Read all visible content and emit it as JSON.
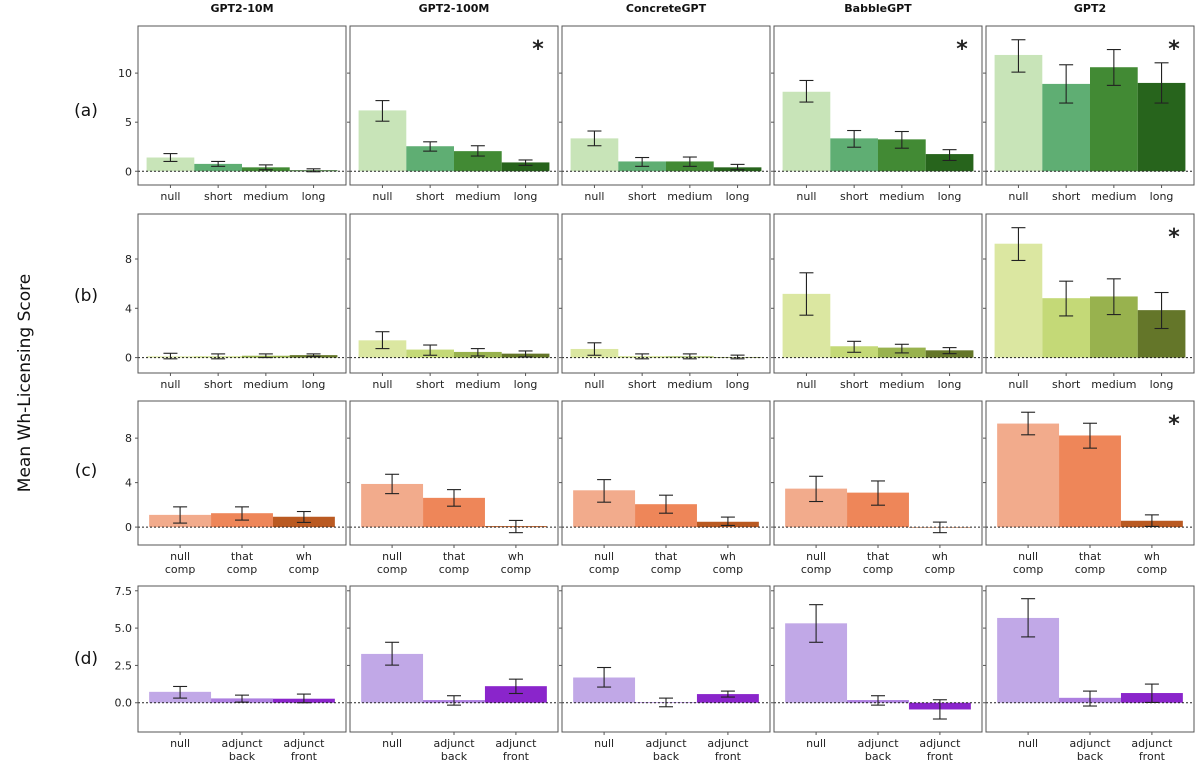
{
  "figure": {
    "y_title": "Mean Wh-Licensing Score",
    "models": [
      "GPT2-10M",
      "GPT2-100M",
      "ConcreteGPT",
      "BabbleGPT",
      "GPT2"
    ],
    "row_labels": [
      "(a)",
      "(b)",
      "(c)",
      "(d)"
    ],
    "significance_marker": "*"
  },
  "chart_data": [
    {
      "row": "(a)",
      "type": "bar",
      "categories": [
        [
          "null"
        ],
        [
          "short"
        ],
        [
          "medium"
        ],
        [
          "long"
        ]
      ],
      "colors": [
        "#c8e4b8",
        "#5fae73",
        "#428a34",
        "#27641c"
      ],
      "ylim": [
        -1.4,
        14.8
      ],
      "yticks": [
        0,
        5,
        10
      ],
      "ytick_labels": [
        "0",
        "5",
        "10"
      ],
      "reference_line": 0,
      "panels": [
        {
          "model": "GPT2-10M",
          "values": [
            1.4,
            0.75,
            0.4,
            0.1
          ],
          "err_low": [
            1.0,
            0.5,
            0.15,
            -0.05
          ],
          "err_high": [
            1.8,
            1.0,
            0.65,
            0.25
          ],
          "significant": false
        },
        {
          "model": "GPT2-100M",
          "values": [
            6.2,
            2.55,
            2.05,
            0.9
          ],
          "err_low": [
            5.1,
            2.05,
            1.55,
            0.6
          ],
          "err_high": [
            7.2,
            3.0,
            2.6,
            1.15
          ],
          "significant": true
        },
        {
          "model": "ConcreteGPT",
          "values": [
            3.35,
            1.0,
            1.0,
            0.4
          ],
          "err_low": [
            2.6,
            0.5,
            0.5,
            0.15
          ],
          "err_high": [
            4.1,
            1.4,
            1.45,
            0.7
          ],
          "significant": false
        },
        {
          "model": "BabbleGPT",
          "values": [
            8.1,
            3.35,
            3.25,
            1.75
          ],
          "err_low": [
            7.05,
            2.45,
            2.35,
            1.1
          ],
          "err_high": [
            9.25,
            4.15,
            4.05,
            2.2
          ],
          "significant": true
        },
        {
          "model": "GPT2",
          "values": [
            11.85,
            8.9,
            10.6,
            9.0
          ],
          "err_low": [
            10.1,
            6.95,
            8.75,
            6.95
          ],
          "err_high": [
            13.4,
            10.85,
            12.4,
            11.05
          ],
          "significant": true
        }
      ]
    },
    {
      "row": "(b)",
      "type": "bar",
      "categories": [
        [
          "null"
        ],
        [
          "short"
        ],
        [
          "medium"
        ],
        [
          "long"
        ]
      ],
      "colors": [
        "#dbe7a1",
        "#c4d977",
        "#98b24e",
        "#647629"
      ],
      "ylim": [
        -1.25,
        11.65
      ],
      "yticks": [
        0,
        4,
        8
      ],
      "ytick_labels": [
        "0",
        "4",
        "8"
      ],
      "reference_line": 0,
      "panels": [
        {
          "model": "GPT2-10M",
          "values": [
            0.1,
            0.1,
            0.15,
            0.2
          ],
          "err_low": [
            -0.1,
            -0.1,
            0.0,
            0.1
          ],
          "err_high": [
            0.35,
            0.3,
            0.3,
            0.3
          ],
          "significant": false
        },
        {
          "model": "GPT2-100M",
          "values": [
            1.4,
            0.65,
            0.46,
            0.32
          ],
          "err_low": [
            0.73,
            0.19,
            0.13,
            0.05
          ],
          "err_high": [
            2.1,
            1.02,
            0.73,
            0.54
          ],
          "significant": false
        },
        {
          "model": "ConcreteGPT",
          "values": [
            0.7,
            0.1,
            0.1,
            0.05
          ],
          "err_low": [
            0.19,
            -0.1,
            -0.1,
            -0.1
          ],
          "err_high": [
            1.2,
            0.3,
            0.3,
            0.2
          ],
          "significant": false
        },
        {
          "model": "BabbleGPT",
          "values": [
            5.17,
            0.92,
            0.81,
            0.59
          ],
          "err_low": [
            3.44,
            0.43,
            0.38,
            0.32
          ],
          "err_high": [
            6.88,
            1.32,
            1.08,
            0.81
          ],
          "significant": false
        },
        {
          "model": "GPT2",
          "values": [
            9.24,
            4.82,
            4.96,
            3.85
          ],
          "err_low": [
            7.88,
            3.38,
            3.49,
            2.36
          ],
          "err_high": [
            10.54,
            6.2,
            6.39,
            5.28
          ],
          "significant": true
        }
      ]
    },
    {
      "row": "(c)",
      "type": "bar",
      "categories": [
        [
          "null",
          "comp"
        ],
        [
          "that",
          "comp"
        ],
        [
          "wh",
          "comp"
        ]
      ],
      "colors": [
        "#f2ab8c",
        "#ee8659",
        "#ba5a22"
      ],
      "ylim": [
        -1.61,
        11.34
      ],
      "yticks": [
        0,
        4,
        8
      ],
      "ytick_labels": [
        "0",
        "4",
        "8"
      ],
      "reference_line": 0,
      "panels": [
        {
          "model": "GPT2-10M",
          "values": [
            1.1,
            1.25,
            0.93
          ],
          "err_low": [
            0.36,
            0.63,
            0.42
          ],
          "err_high": [
            1.82,
            1.82,
            1.4
          ],
          "significant": false
        },
        {
          "model": "GPT2-100M",
          "values": [
            3.88,
            2.63,
            0.09
          ],
          "err_low": [
            3.01,
            1.88,
            -0.5
          ],
          "err_high": [
            4.75,
            3.37,
            0.6
          ],
          "significant": false
        },
        {
          "model": "ConcreteGPT",
          "values": [
            3.31,
            2.06,
            0.48
          ],
          "err_low": [
            2.24,
            1.25,
            0.15
          ],
          "err_high": [
            4.27,
            2.87,
            0.9
          ],
          "significant": false
        },
        {
          "model": "BabbleGPT",
          "values": [
            3.46,
            3.1,
            -0.03
          ],
          "err_low": [
            2.3,
            1.97,
            -0.5
          ],
          "err_high": [
            4.57,
            4.15,
            0.45
          ],
          "significant": false
        },
        {
          "model": "GPT2",
          "values": [
            9.31,
            8.24,
            0.57
          ],
          "err_low": [
            8.3,
            7.1,
            0.06
          ],
          "err_high": [
            10.33,
            9.34,
            1.1
          ],
          "significant": true
        }
      ]
    },
    {
      "row": "(d)",
      "type": "bar",
      "categories": [
        [
          "null"
        ],
        [
          "adjunct",
          "back"
        ],
        [
          "adjunct",
          "front"
        ]
      ],
      "colors": [
        "#c1a8e7",
        "#ad7fe0",
        "#8a25cb"
      ],
      "ylim": [
        -1.96,
        7.82
      ],
      "yticks": [
        0,
        2.5,
        5,
        7.5
      ],
      "ytick_labels": [
        "0.0",
        "2.5",
        "5.0",
        "7.5"
      ],
      "reference_line": 0,
      "panels": [
        {
          "model": "GPT2-10M",
          "values": [
            0.73,
            0.29,
            0.27
          ],
          "err_low": [
            0.31,
            0.04,
            0.0
          ],
          "err_high": [
            1.09,
            0.51,
            0.58
          ],
          "significant": false
        },
        {
          "model": "GPT2-100M",
          "values": [
            3.27,
            0.18,
            1.11
          ],
          "err_low": [
            2.52,
            -0.16,
            0.62
          ],
          "err_high": [
            4.05,
            0.47,
            1.58
          ],
          "significant": false
        },
        {
          "model": "ConcreteGPT",
          "values": [
            1.69,
            0.04,
            0.58
          ],
          "err_low": [
            1.05,
            -0.27,
            0.38
          ],
          "err_high": [
            2.36,
            0.31,
            0.78
          ],
          "significant": false
        },
        {
          "model": "BabbleGPT",
          "values": [
            5.32,
            0.18,
            -0.45
          ],
          "err_low": [
            4.05,
            -0.16,
            -1.09
          ],
          "err_high": [
            6.57,
            0.47,
            0.2
          ],
          "significant": false
        },
        {
          "model": "GPT2",
          "values": [
            5.68,
            0.33,
            0.65
          ],
          "err_low": [
            4.41,
            -0.22,
            0.02
          ],
          "err_high": [
            6.97,
            0.78,
            1.25
          ],
          "significant": false
        }
      ]
    }
  ]
}
